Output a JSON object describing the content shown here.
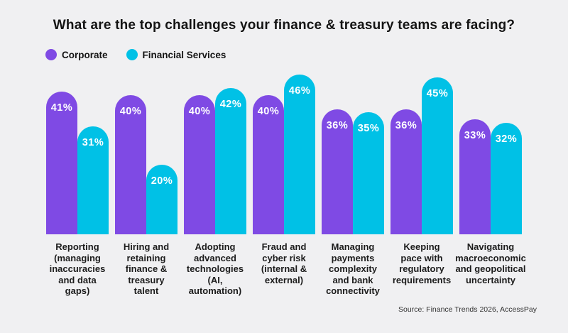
{
  "page": {
    "background": "#f0f0f2"
  },
  "header": {
    "title": "What are the top challenges your finance & treasury teams are facing?"
  },
  "legend": [
    {
      "label": "Corporate",
      "color": "#7f4ae4"
    },
    {
      "label": "Financial Services",
      "color": "#00c1e6"
    }
  ],
  "chart_data": {
    "type": "bar",
    "title": "What are the top challenges your finance & treasury teams are facing?",
    "categories": [
      "Reporting\n(managing\ninaccuracies\nand data\ngaps)",
      "Hiring and\nretaining\nfinance &\ntreasury\ntalent",
      "Adopting\nadvanced\ntechnologies\n(AI,\nautomation)",
      "Fraud and\ncyber risk\n(internal &\nexternal)",
      "Managing\npayments\ncomplexity\nand bank\nconnectivity",
      "Keeping\npace with\nregulatory\nrequirements",
      "Navigating\nmacroeconomic\nand geopolitical\nuncertainty"
    ],
    "series": [
      {
        "name": "Corporate",
        "color": "#7f4ae4",
        "values": [
          41,
          40,
          40,
          40,
          36,
          36,
          33
        ]
      },
      {
        "name": "Financial Services",
        "color": "#00c1e6",
        "values": [
          31,
          20,
          42,
          46,
          35,
          45,
          32
        ]
      }
    ],
    "value_suffix": "%",
    "xlabel": "",
    "ylabel": "",
    "ylim": [
      0,
      50
    ],
    "grid": false,
    "legend_position": "top-left",
    "bar_style": "rounded-top"
  },
  "footer": {
    "source": "Source: Finance Trends 2026, AccessPay"
  }
}
